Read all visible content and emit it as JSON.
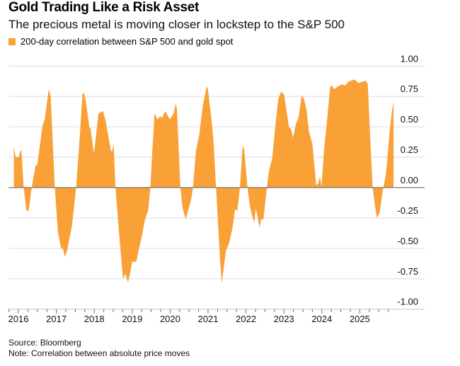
{
  "header": {
    "title": "Gold Trading Like a Risk Asset",
    "subtitle": "The precious metal is moving closer in lockstep to the S&P 500"
  },
  "footer": {
    "source": "Source: Bloomberg",
    "note": "Note: Correlation between absolute price moves"
  },
  "chart_data": {
    "type": "area",
    "title": "Gold Trading Like a Risk Asset",
    "subtitle": "The precious metal is moving closer in lockstep to the S&P 500",
    "xlabel": "",
    "ylabel": "",
    "xlim": [
      2015.85,
      2025.95
    ],
    "ylim": [
      -1.0,
      1.0
    ],
    "x_ticks": [
      "2016",
      "2017",
      "2018",
      "2019",
      "2020",
      "2021",
      "2022",
      "2023",
      "2024",
      "2025"
    ],
    "y_ticks": [
      "1.00",
      "0.75",
      "0.50",
      "0.25",
      "0.00",
      "-0.25",
      "-0.50",
      "-0.75",
      "-1.00"
    ],
    "grid": true,
    "legend_position": "top-left",
    "color": "#F9A136",
    "series": [
      {
        "name": "200-day correlation between S&P 500 and gold spot",
        "points": [
          [
            2015.88,
            0.34
          ],
          [
            2015.93,
            0.25
          ],
          [
            2016.01,
            0.25
          ],
          [
            2016.06,
            0.31
          ],
          [
            2016.08,
            0.3
          ],
          [
            2016.14,
            0
          ],
          [
            2016.21,
            -0.19
          ],
          [
            2016.27,
            -0.19
          ],
          [
            2016.35,
            0
          ],
          [
            2016.45,
            0.18
          ],
          [
            2016.5,
            0.19
          ],
          [
            2016.63,
            0.5
          ],
          [
            2016.7,
            0.57
          ],
          [
            2016.8,
            0.81
          ],
          [
            2016.85,
            0.75
          ],
          [
            2016.96,
            0
          ],
          [
            2017.04,
            -0.36
          ],
          [
            2017.13,
            -0.51
          ],
          [
            2017.16,
            -0.49
          ],
          [
            2017.23,
            -0.57
          ],
          [
            2017.29,
            -0.51
          ],
          [
            2017.35,
            -0.41
          ],
          [
            2017.41,
            -0.32
          ],
          [
            2017.52,
            0
          ],
          [
            2017.6,
            0.34
          ],
          [
            2017.69,
            0.77
          ],
          [
            2017.73,
            0.78
          ],
          [
            2017.78,
            0.71
          ],
          [
            2017.87,
            0.5
          ],
          [
            2017.9,
            0.49
          ],
          [
            2017.99,
            0.28
          ],
          [
            2018.03,
            0.38
          ],
          [
            2018.11,
            0.61
          ],
          [
            2018.23,
            0.63
          ],
          [
            2018.3,
            0.55
          ],
          [
            2018.44,
            0.3
          ],
          [
            2018.47,
            0.3
          ],
          [
            2018.51,
            0.36
          ],
          [
            2018.56,
            0
          ],
          [
            2018.66,
            -0.4
          ],
          [
            2018.76,
            -0.75
          ],
          [
            2018.82,
            -0.71
          ],
          [
            2018.89,
            -0.78
          ],
          [
            2018.95,
            -0.7
          ],
          [
            2019.0,
            -0.61
          ],
          [
            2019.11,
            -0.61
          ],
          [
            2019.18,
            -0.5
          ],
          [
            2019.25,
            -0.41
          ],
          [
            2019.34,
            -0.26
          ],
          [
            2019.42,
            -0.19
          ],
          [
            2019.48,
            0
          ],
          [
            2019.53,
            0.3
          ],
          [
            2019.59,
            0.61
          ],
          [
            2019.67,
            0.56
          ],
          [
            2019.74,
            0.59
          ],
          [
            2019.78,
            0.57
          ],
          [
            2019.87,
            0.63
          ],
          [
            2019.99,
            0.56
          ],
          [
            2020.09,
            0.61
          ],
          [
            2020.15,
            0.69
          ],
          [
            2020.18,
            0.65
          ],
          [
            2020.27,
            0
          ],
          [
            2020.33,
            -0.17
          ],
          [
            2020.41,
            -0.26
          ],
          [
            2020.49,
            -0.17
          ],
          [
            2020.56,
            -0.09
          ],
          [
            2020.6,
            0
          ],
          [
            2020.68,
            0.3
          ],
          [
            2020.77,
            0.44
          ],
          [
            2020.86,
            0.67
          ],
          [
            2020.96,
            0.83
          ],
          [
            2020.99,
            0.82
          ],
          [
            2021.08,
            0.59
          ],
          [
            2021.14,
            0.4
          ],
          [
            2021.21,
            0
          ],
          [
            2021.3,
            -0.51
          ],
          [
            2021.36,
            -0.79
          ],
          [
            2021.47,
            -0.52
          ],
          [
            2021.55,
            -0.46
          ],
          [
            2021.64,
            -0.34
          ],
          [
            2021.71,
            -0.18
          ],
          [
            2021.77,
            -0.19
          ],
          [
            2021.81,
            -0.09
          ],
          [
            2021.84,
            0
          ],
          [
            2021.91,
            0.34
          ],
          [
            2021.95,
            0.32
          ],
          [
            2021.99,
            0.18
          ],
          [
            2022.04,
            0
          ],
          [
            2022.1,
            -0.15
          ],
          [
            2022.17,
            -0.24
          ],
          [
            2022.22,
            -0.29
          ],
          [
            2022.26,
            -0.17
          ],
          [
            2022.36,
            -0.33
          ],
          [
            2022.4,
            -0.26
          ],
          [
            2022.46,
            -0.26
          ],
          [
            2022.55,
            0
          ],
          [
            2022.6,
            0.13
          ],
          [
            2022.69,
            0.24
          ],
          [
            2022.77,
            0.5
          ],
          [
            2022.85,
            0.73
          ],
          [
            2022.93,
            0.79
          ],
          [
            2023.01,
            0.76
          ],
          [
            2023.13,
            0.5
          ],
          [
            2023.19,
            0.48
          ],
          [
            2023.24,
            0.41
          ],
          [
            2023.32,
            0.53
          ],
          [
            2023.38,
            0.57
          ],
          [
            2023.47,
            0.76
          ],
          [
            2023.53,
            0.73
          ],
          [
            2023.6,
            0.63
          ],
          [
            2023.66,
            0.46
          ],
          [
            2023.75,
            0.36
          ],
          [
            2023.85,
            0.02
          ],
          [
            2023.9,
            0.03
          ],
          [
            2023.95,
            0.09
          ],
          [
            2023.99,
            0.01
          ],
          [
            2024.06,
            0.32
          ],
          [
            2024.12,
            0.5
          ],
          [
            2024.22,
            0.83
          ],
          [
            2024.26,
            0.84
          ],
          [
            2024.33,
            0.81
          ],
          [
            2024.41,
            0.83
          ],
          [
            2024.53,
            0.85
          ],
          [
            2024.62,
            0.84
          ],
          [
            2024.69,
            0.87
          ],
          [
            2024.85,
            0.89
          ],
          [
            2024.97,
            0.86
          ],
          [
            2025.16,
            0.88
          ],
          [
            2025.21,
            0.85
          ],
          [
            2025.26,
            0.51
          ],
          [
            2025.34,
            0
          ],
          [
            2025.4,
            -0.15
          ],
          [
            2025.45,
            -0.25
          ],
          [
            2025.52,
            -0.21
          ],
          [
            2025.62,
            0
          ],
          [
            2025.69,
            0.11
          ],
          [
            2025.78,
            0.44
          ],
          [
            2025.84,
            0.61
          ],
          [
            2025.89,
            0.71
          ]
        ]
      }
    ]
  }
}
